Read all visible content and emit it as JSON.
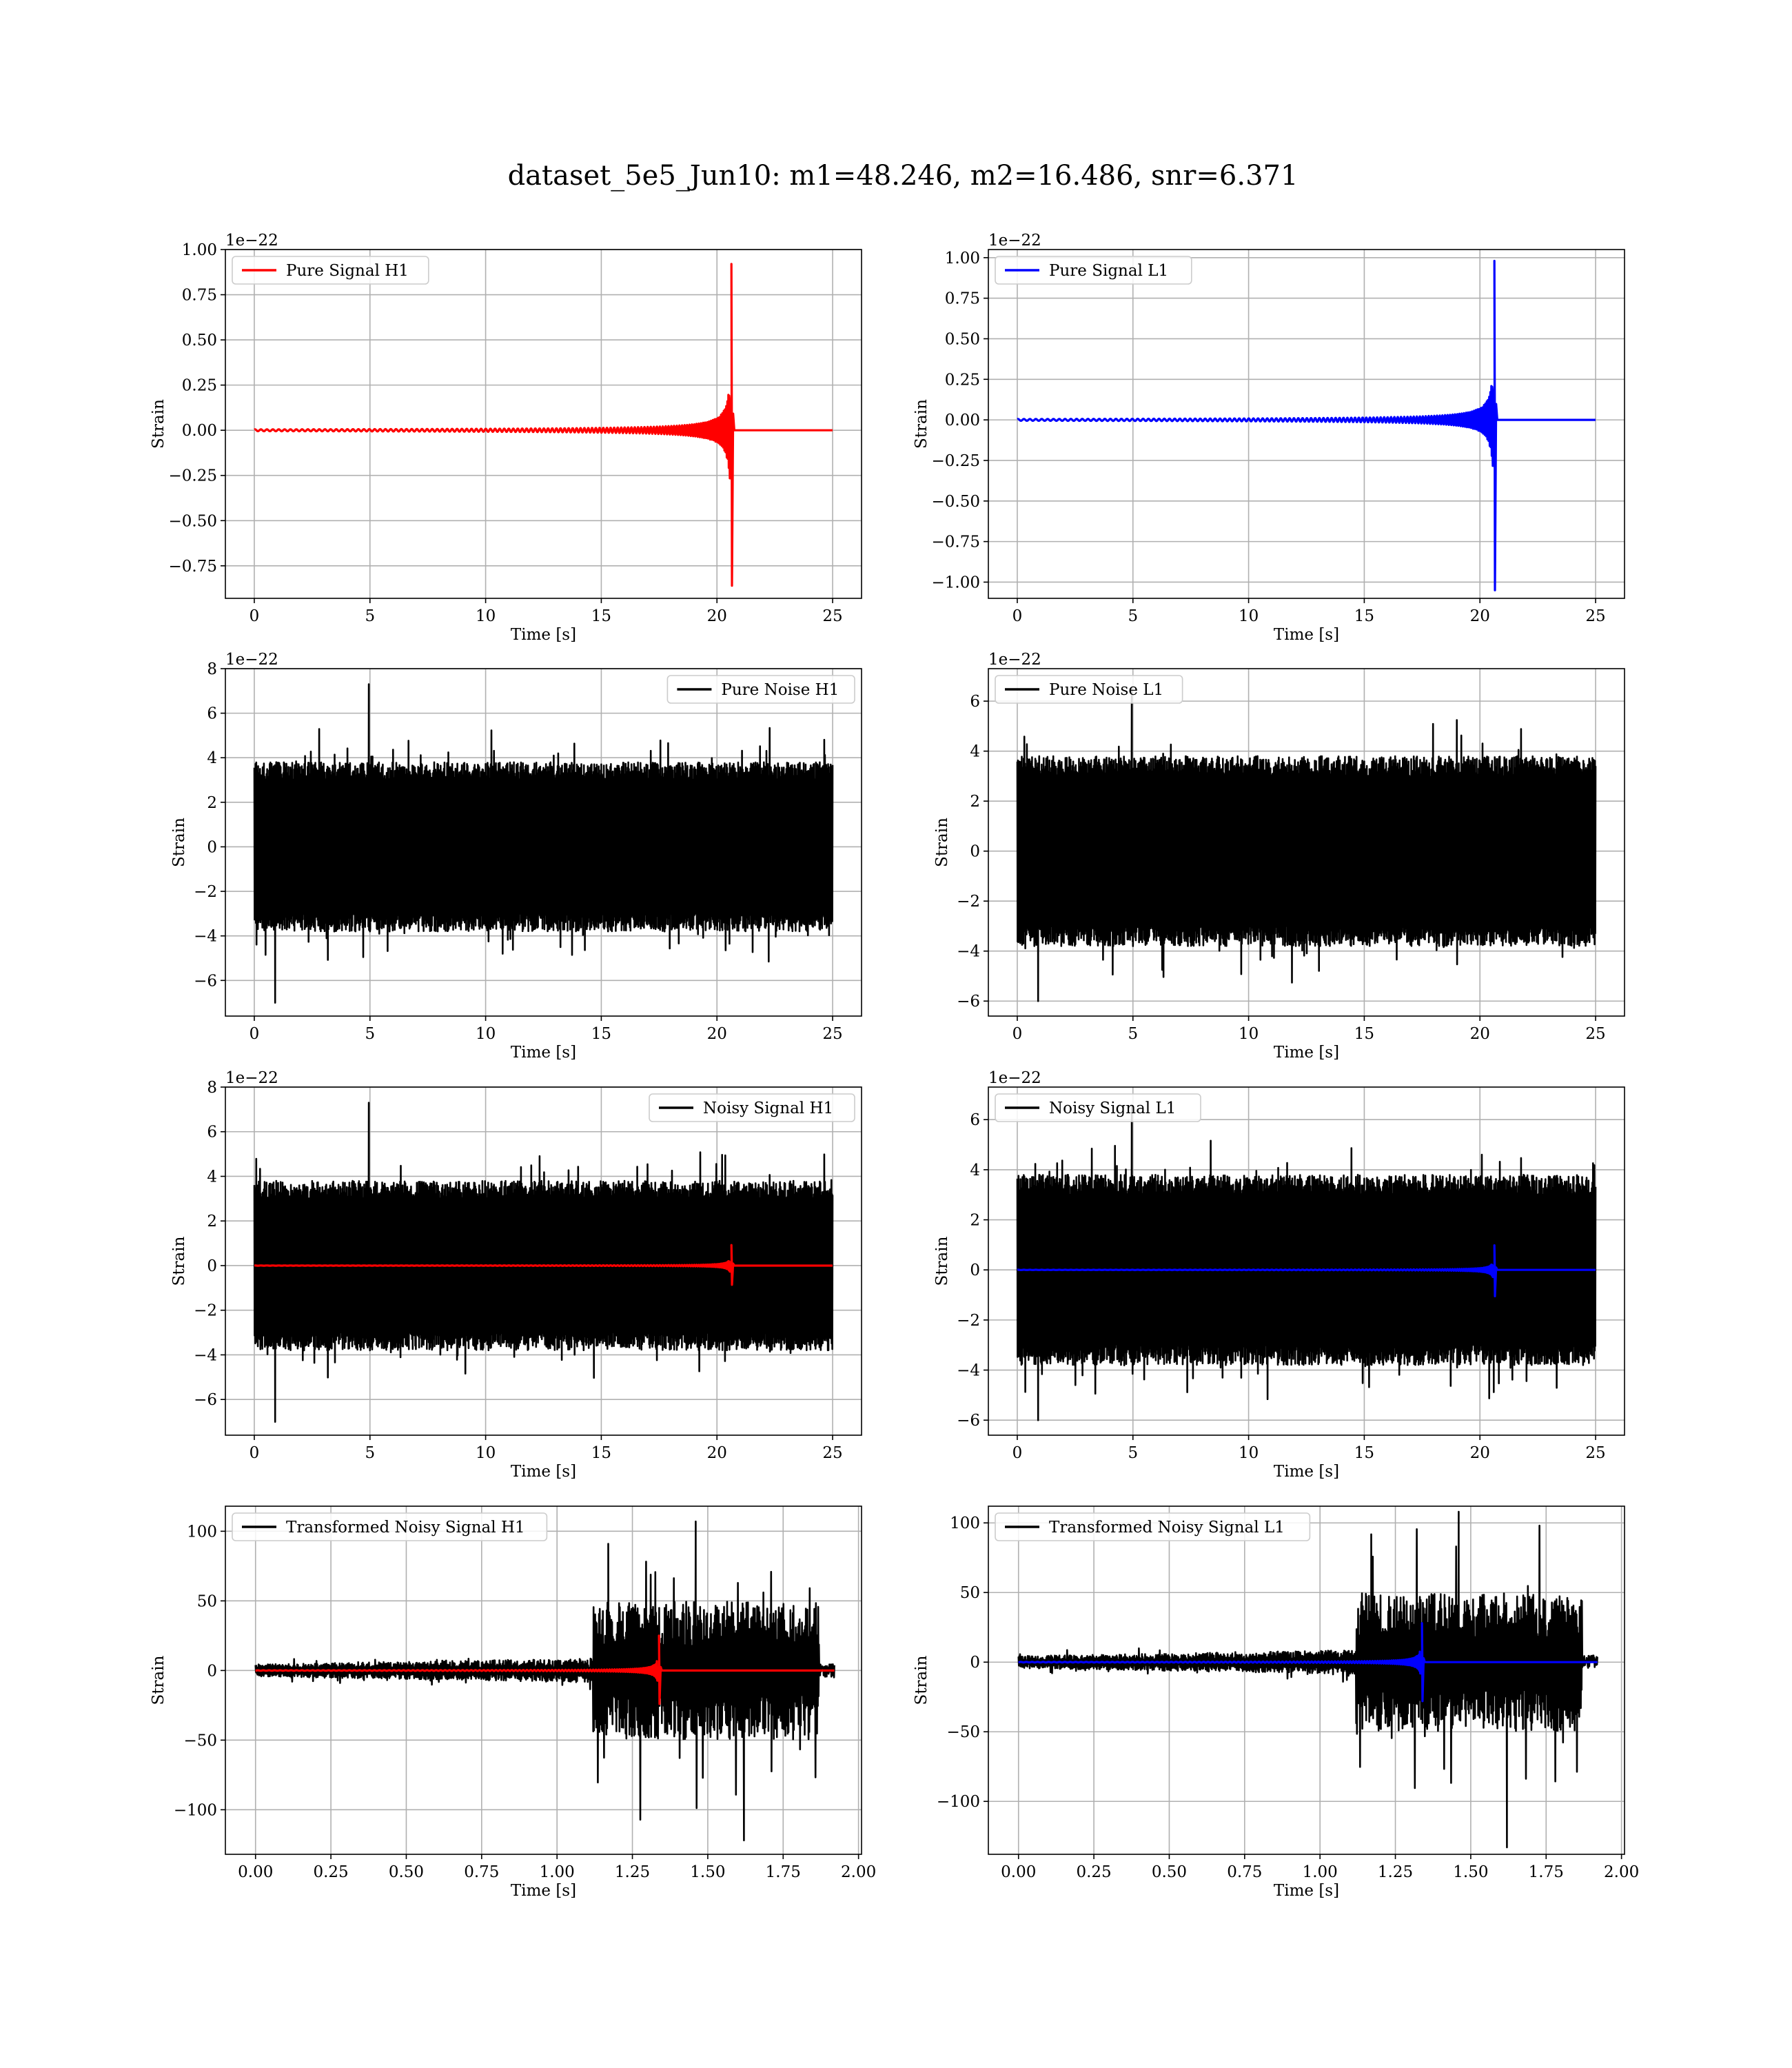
{
  "figure": {
    "title": "dataset_5e5_Jun10: m1=48.246, m2=16.486, snr=6.371"
  },
  "colors": {
    "h1_signal": "#ff0000",
    "l1_signal": "#0000ff",
    "noise": "#000000",
    "grid": "#b0b0b0",
    "legend_edge": "#cccccc"
  },
  "chart_data": [
    {
      "type": "line",
      "id": "p00",
      "row": 0,
      "col": 0,
      "xlabel": "Time [s]",
      "ylabel": "Strain",
      "offset_text": "1e−22",
      "xlim": [
        -1.25,
        26.25
      ],
      "ylim": [
        -0.93,
        1.0
      ],
      "xticks": [
        0,
        5,
        10,
        15,
        20,
        25
      ],
      "xtick_labels": [
        "0",
        "5",
        "10",
        "15",
        "20",
        "25"
      ],
      "yticks": [
        1.0,
        0.75,
        0.5,
        0.25,
        0.0,
        -0.25,
        -0.5,
        -0.75
      ],
      "ytick_labels": [
        "1.00",
        "0.75",
        "0.50",
        "0.25",
        "0.00",
        "−0.25",
        "−0.50",
        "−0.75"
      ],
      "grid": true,
      "legend_position": "upper-left",
      "series": [
        {
          "name": "Pure Signal H1",
          "color": "#ff0000",
          "kind": "chirp",
          "t_start": 0,
          "t_end": 25,
          "merger_time": 20.65,
          "peak_positive": 0.92,
          "peak_negative": -0.86
        }
      ]
    },
    {
      "type": "line",
      "id": "p01",
      "row": 0,
      "col": 1,
      "xlabel": "Time [s]",
      "ylabel": "Strain",
      "offset_text": "1e−22",
      "xlim": [
        -1.25,
        26.25
      ],
      "ylim": [
        -1.1,
        1.05
      ],
      "xticks": [
        0,
        5,
        10,
        15,
        20,
        25
      ],
      "xtick_labels": [
        "0",
        "5",
        "10",
        "15",
        "20",
        "25"
      ],
      "yticks": [
        1.0,
        0.75,
        0.5,
        0.25,
        0.0,
        -0.25,
        -0.5,
        -0.75,
        -1.0
      ],
      "ytick_labels": [
        "1.00",
        "0.75",
        "0.50",
        "0.25",
        "0.00",
        "−0.25",
        "−0.50",
        "−0.75",
        "−1.00"
      ],
      "grid": true,
      "legend_position": "upper-left",
      "series": [
        {
          "name": "Pure Signal L1",
          "color": "#0000ff",
          "kind": "chirp",
          "t_start": 0,
          "t_end": 25,
          "merger_time": 20.65,
          "peak_positive": 0.98,
          "peak_negative": -1.05
        }
      ]
    },
    {
      "type": "line",
      "id": "p10",
      "row": 1,
      "col": 0,
      "xlabel": "Time [s]",
      "ylabel": "Strain",
      "offset_text": "1e−22",
      "xlim": [
        -1.25,
        26.25
      ],
      "ylim": [
        -7.6,
        8.0
      ],
      "xticks": [
        0,
        5,
        10,
        15,
        20,
        25
      ],
      "xtick_labels": [
        "0",
        "5",
        "10",
        "15",
        "20",
        "25"
      ],
      "yticks": [
        8,
        6,
        4,
        2,
        0,
        -2,
        -4,
        -6
      ],
      "ytick_labels": [
        "8",
        "6",
        "4",
        "2",
        "0",
        "−2",
        "−4",
        "−6"
      ],
      "grid": true,
      "legend_position": "upper-right",
      "series": [
        {
          "name": "Pure Noise H1",
          "color": "#000000",
          "kind": "noise",
          "t_start": 0,
          "t_end": 25,
          "band": [
            -3.8,
            3.8
          ],
          "max": 7.3,
          "min": -7.0
        }
      ]
    },
    {
      "type": "line",
      "id": "p11",
      "row": 1,
      "col": 1,
      "xlabel": "Time [s]",
      "ylabel": "Strain",
      "offset_text": "1e−22",
      "xlim": [
        -1.25,
        26.25
      ],
      "ylim": [
        -6.6,
        7.3
      ],
      "xticks": [
        0,
        5,
        10,
        15,
        20,
        25
      ],
      "xtick_labels": [
        "0",
        "5",
        "10",
        "15",
        "20",
        "25"
      ],
      "yticks": [
        6,
        4,
        2,
        0,
        -2,
        -4,
        -6
      ],
      "ytick_labels": [
        "6",
        "4",
        "2",
        "0",
        "−2",
        "−4",
        "−6"
      ],
      "grid": true,
      "legend_position": "upper-left",
      "series": [
        {
          "name": "Pure Noise L1",
          "color": "#000000",
          "kind": "noise",
          "t_start": 0,
          "t_end": 25,
          "band": [
            -3.8,
            3.8
          ],
          "max": 6.5,
          "min": -6.0
        }
      ]
    },
    {
      "type": "line",
      "id": "p20",
      "row": 2,
      "col": 0,
      "xlabel": "Time [s]",
      "ylabel": "Strain",
      "offset_text": "1e−22",
      "xlim": [
        -1.25,
        26.25
      ],
      "ylim": [
        -7.6,
        8.0
      ],
      "xticks": [
        0,
        5,
        10,
        15,
        20,
        25
      ],
      "xtick_labels": [
        "0",
        "5",
        "10",
        "15",
        "20",
        "25"
      ],
      "yticks": [
        8,
        6,
        4,
        2,
        0,
        -2,
        -4,
        -6
      ],
      "ytick_labels": [
        "8",
        "6",
        "4",
        "2",
        "0",
        "−2",
        "−4",
        "−6"
      ],
      "grid": true,
      "legend_position": "upper-right",
      "series": [
        {
          "name": "Noisy Signal H1",
          "color": "#000000",
          "kind": "noise",
          "t_start": 0,
          "t_end": 25,
          "band": [
            -3.8,
            3.8
          ],
          "max": 7.3,
          "min": -7.0
        },
        {
          "name": "",
          "color": "#ff0000",
          "kind": "chirp",
          "t_start": 0,
          "t_end": 25,
          "merger_time": 20.65,
          "peak_positive": 0.92,
          "peak_negative": -0.86
        }
      ]
    },
    {
      "type": "line",
      "id": "p21",
      "row": 2,
      "col": 1,
      "xlabel": "Time [s]",
      "ylabel": "Strain",
      "offset_text": "1e−22",
      "xlim": [
        -1.25,
        26.25
      ],
      "ylim": [
        -6.6,
        7.3
      ],
      "xticks": [
        0,
        5,
        10,
        15,
        20,
        25
      ],
      "xtick_labels": [
        "0",
        "5",
        "10",
        "15",
        "20",
        "25"
      ],
      "yticks": [
        6,
        4,
        2,
        0,
        -2,
        -4,
        -6
      ],
      "ytick_labels": [
        "6",
        "4",
        "2",
        "0",
        "−2",
        "−4",
        "−6"
      ],
      "grid": true,
      "legend_position": "upper-left",
      "series": [
        {
          "name": "Noisy Signal L1",
          "color": "#000000",
          "kind": "noise",
          "t_start": 0,
          "t_end": 25,
          "band": [
            -3.8,
            3.8
          ],
          "max": 6.5,
          "min": -6.0
        },
        {
          "name": "",
          "color": "#0000ff",
          "kind": "chirp",
          "t_start": 0,
          "t_end": 25,
          "merger_time": 20.65,
          "peak_positive": 0.98,
          "peak_negative": -1.05
        }
      ]
    },
    {
      "type": "line",
      "id": "p30",
      "row": 3,
      "col": 0,
      "xlabel": "Time [s]",
      "ylabel": "Strain",
      "offset_text": "",
      "xlim": [
        -0.1,
        2.01
      ],
      "ylim": [
        -132,
        118
      ],
      "xticks": [
        0,
        0.25,
        0.5,
        0.75,
        1.0,
        1.25,
        1.5,
        1.75,
        2.0
      ],
      "xtick_labels": [
        "0.00",
        "0.25",
        "0.50",
        "0.75",
        "1.00",
        "1.25",
        "1.50",
        "1.75",
        "2.00"
      ],
      "yticks": [
        100,
        50,
        0,
        -50,
        -100
      ],
      "ytick_labels": [
        "100",
        "50",
        "0",
        "−50",
        "−100"
      ],
      "grid": true,
      "legend_position": "upper-left",
      "series": [
        {
          "name": "Transformed Noisy Signal H1",
          "color": "#000000",
          "kind": "whitened",
          "t_start": 0,
          "t_end": 1.92,
          "step_time": 1.12,
          "band_before": [
            -6,
            6
          ],
          "band_after": [
            -45,
            45
          ],
          "end_time": 1.87,
          "max": 107,
          "min": -122
        },
        {
          "name": "",
          "color": "#ff0000",
          "kind": "chirp",
          "t_start": 0,
          "t_end": 1.92,
          "merger_time": 1.34,
          "peak_positive": 25,
          "peak_negative": -24
        }
      ]
    },
    {
      "type": "line",
      "id": "p31",
      "row": 3,
      "col": 1,
      "xlabel": "Time [s]",
      "ylabel": "Strain",
      "offset_text": "",
      "xlim": [
        -0.1,
        2.01
      ],
      "ylim": [
        -138,
        112
      ],
      "xticks": [
        0,
        0.25,
        0.5,
        0.75,
        1.0,
        1.25,
        1.5,
        1.75,
        2.0
      ],
      "xtick_labels": [
        "0.00",
        "0.25",
        "0.50",
        "0.75",
        "1.00",
        "1.25",
        "1.50",
        "1.75",
        "2.00"
      ],
      "yticks": [
        100,
        50,
        0,
        -50,
        -100
      ],
      "ytick_labels": [
        "100",
        "50",
        "0",
        "−50",
        "−100"
      ],
      "grid": true,
      "legend_position": "upper-left",
      "series": [
        {
          "name": "Transformed Noisy Signal L1",
          "color": "#000000",
          "kind": "whitened",
          "t_start": 0,
          "t_end": 1.92,
          "step_time": 1.12,
          "band_before": [
            -6,
            6
          ],
          "band_after": [
            -45,
            45
          ],
          "end_time": 1.87,
          "max": 108,
          "min": -133
        },
        {
          "name": "",
          "color": "#0000ff",
          "kind": "chirp",
          "t_start": 0,
          "t_end": 1.92,
          "merger_time": 1.34,
          "peak_positive": 28,
          "peak_negative": -28
        }
      ]
    }
  ]
}
